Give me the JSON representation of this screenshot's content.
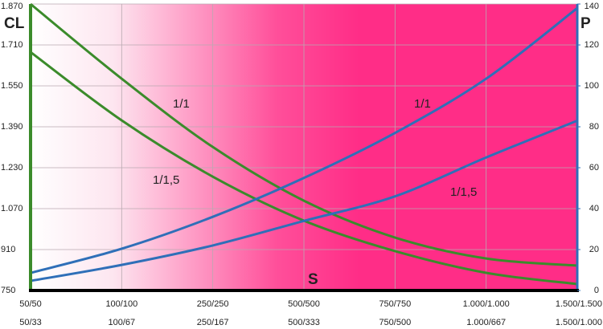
{
  "chart_data": {
    "type": "line",
    "y_label": "CL",
    "y2_label": "P",
    "x_label": "S",
    "categories": [
      "50/50",
      "100/100",
      "250/250",
      "500/500",
      "750/750",
      "1.000/1.000",
      "1.500/1.500"
    ],
    "secondary_categories": [
      "50/33",
      "100/67",
      "250/167",
      "500/333",
      "750/500",
      "1.000/667",
      "1.500/1.000"
    ],
    "ylim": [
      750,
      1870
    ],
    "yticks": [
      750,
      910,
      {
        "value": 1070,
        "label": "1.070"
      },
      {
        "value": 1230,
        "label": "1.230"
      },
      {
        "value": 1390,
        "label": "1.390"
      },
      {
        "value": 1550,
        "label": "1.550"
      },
      {
        "value": 1710,
        "label": "1.710"
      },
      {
        "value": 1870,
        "label": "1.870"
      }
    ],
    "y2lim": [
      0,
      140
    ],
    "y2ticks": [
      0,
      20,
      40,
      60,
      80,
      100,
      120,
      140
    ],
    "grid": true,
    "series": [
      {
        "name": "1/1",
        "color": "#3b8b2b",
        "values": [
          1870,
          1578,
          1311,
          1101,
          957,
          875,
          847
        ]
      },
      {
        "name": "1/1,5",
        "color": "#3b8b2b",
        "values": [
          1682,
          1415,
          1195,
          1023,
          904,
          819,
          775
        ]
      },
      {
        "name": "1/1",
        "color": "#2f6fb8",
        "axis": "y2",
        "values": [
          8.6,
          20.4,
          36,
          55,
          77,
          103.5,
          138
        ]
      },
      {
        "name": "1/1,5",
        "color": "#2f6fb8",
        "axis": "y2",
        "values": [
          4.7,
          12.5,
          22,
          34,
          46,
          65,
          83
        ]
      }
    ]
  }
}
